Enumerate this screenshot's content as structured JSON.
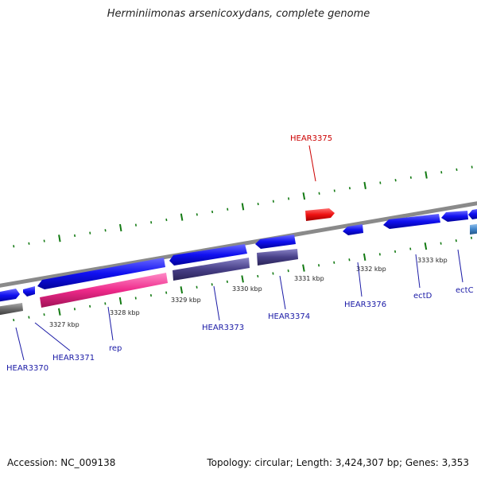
{
  "header": {
    "title": "Herminiimonas arsenicoxydans, complete genome"
  },
  "footer": {
    "accession": "Accession: NC_009138",
    "summary": "Topology: circular; Length: 3,424,307 bp; Genes: 3,353"
  },
  "colors": {
    "backbone": "#8a8a8a",
    "tick": "#137a13",
    "forward_gene": "#1010f0",
    "reverse_gene": "#484088",
    "rep_gene": "#ee2a8a",
    "highlight_gene": "#ee1111",
    "gray_gene": "#6a6a6a",
    "light_blue_gene": "#4488cc",
    "label": "#1a1aa6",
    "label_highlight": "#cc0000"
  },
  "scale": {
    "unit": "kbp",
    "positions": [
      3327,
      3328,
      3329,
      3330,
      3331,
      3332,
      3333
    ]
  },
  "gene_labels": [
    "HEAR3370",
    "HEAR3371",
    "rep",
    "HEAR3373",
    "HEAR3374",
    "HEAR3375",
    "HEAR3376",
    "ectD",
    "ectC"
  ],
  "highlighted_gene": "HEAR3375"
}
